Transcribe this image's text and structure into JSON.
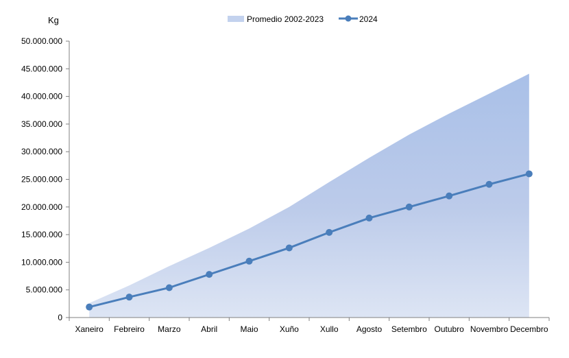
{
  "chart_data": {
    "type": "area+line",
    "ylabel": "Kg",
    "ylim": [
      0,
      50000000
    ],
    "ytick_step": 5000000,
    "ytick_labels": [
      "0",
      "5.000.000",
      "10.000.000",
      "15.000.000",
      "20.000.000",
      "25.000.000",
      "30.000.000",
      "35.000.000",
      "40.000.000",
      "45.000.000",
      "50.000.000"
    ],
    "categories": [
      "Xaneiro",
      "Febreiro",
      "Marzo",
      "Abril",
      "Maio",
      "Xuño",
      "Xullo",
      "Agosto",
      "Setembro",
      "Outubro",
      "Novembro",
      "Decembro"
    ],
    "legend_position": "top",
    "series": [
      {
        "name": "Promedio 2002-2023",
        "kind": "area",
        "color": "#b4c7e7",
        "values": [
          2600000,
          5800000,
          9300000,
          12600000,
          16100000,
          20000000,
          24500000,
          28900000,
          33100000,
          36900000,
          40500000,
          44100000
        ]
      },
      {
        "name": "2024",
        "kind": "line",
        "color": "#4a7ebb",
        "values": [
          1900000,
          3700000,
          5400000,
          7800000,
          10200000,
          12600000,
          15400000,
          18000000,
          20000000,
          22000000,
          24100000,
          26000000
        ]
      }
    ]
  }
}
